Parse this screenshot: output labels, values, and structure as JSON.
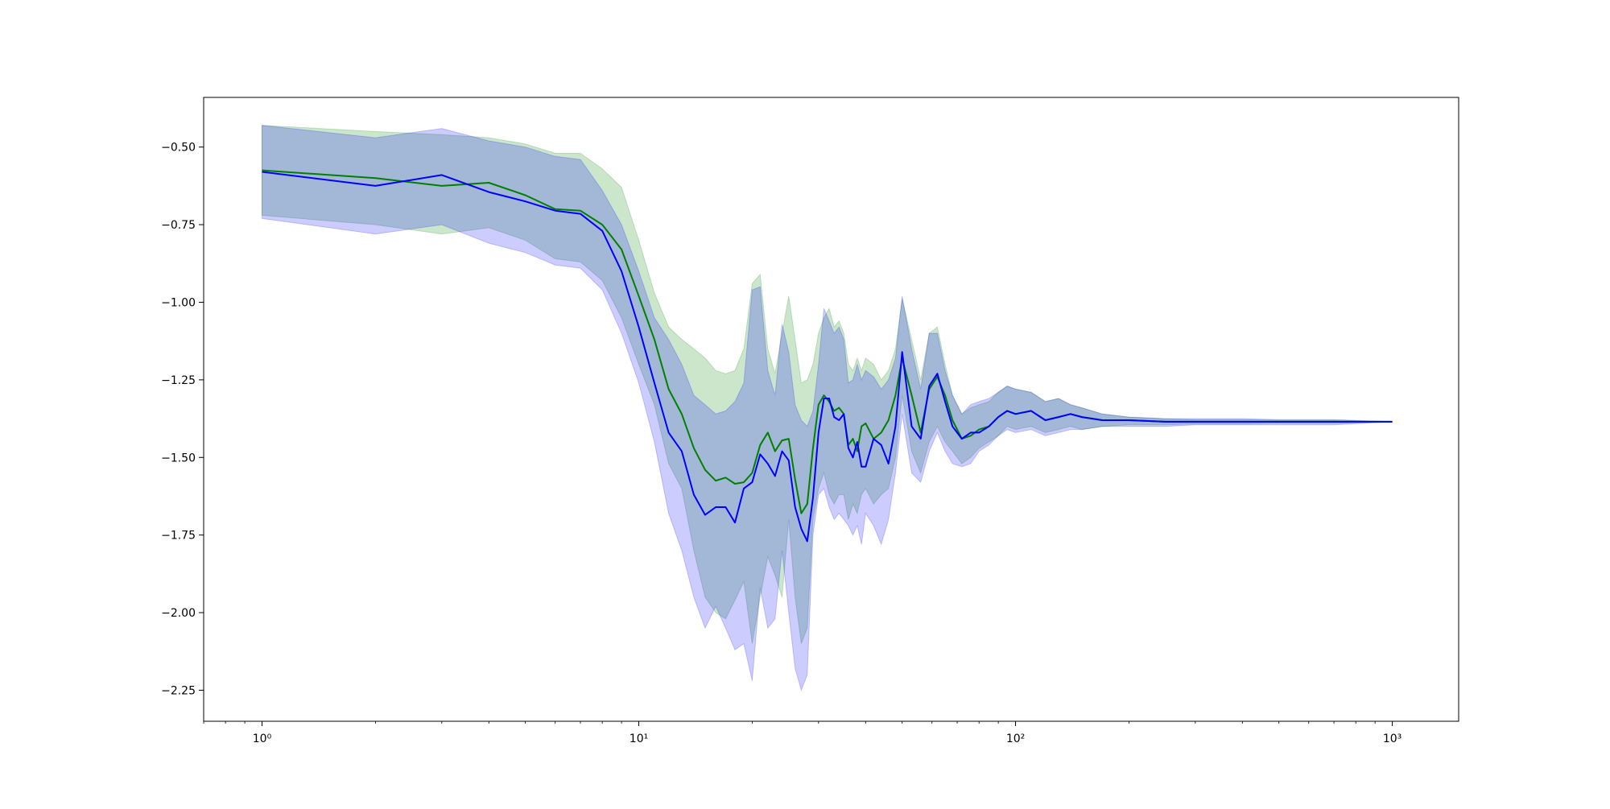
{
  "chart_data": {
    "type": "line",
    "title": "",
    "xlabel": "",
    "ylabel": "",
    "xscale": "log",
    "xlim": [
      0.7,
      1500
    ],
    "ylim": [
      -2.35,
      -0.34
    ],
    "grid": false,
    "legend": "none",
    "x_ticks": [
      {
        "value": 1,
        "label": "10⁰"
      },
      {
        "value": 10,
        "label": "10¹"
      },
      {
        "value": 100,
        "label": "10²"
      },
      {
        "value": 1000,
        "label": "10³"
      }
    ],
    "y_ticks": [
      {
        "value": -0.5,
        "label": "−0.50"
      },
      {
        "value": -0.75,
        "label": "−0.75"
      },
      {
        "value": -1.0,
        "label": "−1.00"
      },
      {
        "value": -1.25,
        "label": "−1.25"
      },
      {
        "value": -1.5,
        "label": "−1.50"
      },
      {
        "value": -1.75,
        "label": "−1.75"
      },
      {
        "value": -2.0,
        "label": "−2.00"
      },
      {
        "value": -2.25,
        "label": "−2.25"
      }
    ],
    "series": [
      {
        "color": "#008000",
        "band_color": "#008000",
        "band_opacity": 0.2,
        "x": [
          1,
          2,
          3,
          4,
          5,
          6,
          7,
          8,
          9,
          10,
          11,
          12,
          13,
          14,
          15,
          16,
          17,
          18,
          19,
          20,
          21,
          22,
          23,
          24,
          25,
          26,
          27,
          28,
          29,
          30,
          31,
          32,
          33,
          34,
          35,
          36,
          37,
          38,
          39,
          40,
          42,
          44,
          46,
          48,
          50,
          53,
          56,
          59,
          62,
          65,
          68,
          72,
          76,
          80,
          85,
          90,
          95,
          100,
          110,
          120,
          130,
          140,
          150,
          170,
          200,
          250,
          300,
          400,
          500,
          700,
          1000
        ],
        "mean": [
          -0.575,
          -0.6,
          -0.625,
          -0.615,
          -0.655,
          -0.7,
          -0.705,
          -0.75,
          -0.83,
          -0.98,
          -1.12,
          -1.28,
          -1.36,
          -1.47,
          -1.54,
          -1.575,
          -1.565,
          -1.585,
          -1.58,
          -1.55,
          -1.46,
          -1.42,
          -1.48,
          -1.445,
          -1.44,
          -1.57,
          -1.68,
          -1.65,
          -1.47,
          -1.33,
          -1.3,
          -1.32,
          -1.35,
          -1.34,
          -1.36,
          -1.46,
          -1.44,
          -1.48,
          -1.4,
          -1.39,
          -1.44,
          -1.42,
          -1.38,
          -1.3,
          -1.18,
          -1.3,
          -1.42,
          -1.28,
          -1.24,
          -1.3,
          -1.38,
          -1.44,
          -1.43,
          -1.41,
          -1.4,
          -1.37,
          -1.35,
          -1.36,
          -1.35,
          -1.38,
          -1.37,
          -1.36,
          -1.37,
          -1.38,
          -1.38,
          -1.385,
          -1.385,
          -1.385,
          -1.385,
          -1.385,
          -1.385
        ],
        "upper": [
          -0.43,
          -0.45,
          -0.46,
          -0.47,
          -0.49,
          -0.52,
          -0.52,
          -0.57,
          -0.63,
          -0.8,
          -0.97,
          -1.08,
          -1.12,
          -1.15,
          -1.18,
          -1.22,
          -1.23,
          -1.22,
          -1.15,
          -0.94,
          -0.91,
          -1.15,
          -1.23,
          -1.1,
          -0.98,
          -1.12,
          -1.26,
          -1.25,
          -1.2,
          -1.1,
          -1.05,
          -1.02,
          -1.08,
          -1.06,
          -1.1,
          -1.2,
          -1.22,
          -1.18,
          -1.22,
          -1.18,
          -1.2,
          -1.25,
          -1.22,
          -1.15,
          -0.99,
          -1.12,
          -1.25,
          -1.1,
          -1.08,
          -1.2,
          -1.3,
          -1.36,
          -1.34,
          -1.33,
          -1.32,
          -1.29,
          -1.27,
          -1.28,
          -1.29,
          -1.32,
          -1.31,
          -1.33,
          -1.34,
          -1.36,
          -1.37,
          -1.375,
          -1.378,
          -1.378,
          -1.38,
          -1.38,
          -1.385
        ],
        "lower": [
          -0.72,
          -0.75,
          -0.78,
          -0.76,
          -0.8,
          -0.86,
          -0.87,
          -0.93,
          -1.05,
          -1.2,
          -1.33,
          -1.52,
          -1.6,
          -1.8,
          -1.95,
          -2.0,
          -2.02,
          -1.96,
          -1.9,
          -2.1,
          -1.95,
          -1.82,
          -1.88,
          -1.95,
          -1.7,
          -1.95,
          -2.1,
          -2.05,
          -1.7,
          -1.6,
          -1.55,
          -1.62,
          -1.65,
          -1.62,
          -1.62,
          -1.7,
          -1.65,
          -1.68,
          -1.62,
          -1.6,
          -1.65,
          -1.62,
          -1.6,
          -1.5,
          -1.3,
          -1.48,
          -1.55,
          -1.45,
          -1.4,
          -1.45,
          -1.48,
          -1.52,
          -1.5,
          -1.47,
          -1.45,
          -1.43,
          -1.4,
          -1.41,
          -1.4,
          -1.42,
          -1.41,
          -1.4,
          -1.41,
          -1.4,
          -1.395,
          -1.395,
          -1.392,
          -1.392,
          -1.39,
          -1.39,
          -1.385
        ]
      },
      {
        "color": "#0000ff",
        "band_color": "#0000ff",
        "band_opacity": 0.2,
        "x": [
          1,
          2,
          3,
          4,
          5,
          6,
          7,
          8,
          9,
          10,
          11,
          12,
          13,
          14,
          15,
          16,
          17,
          18,
          19,
          20,
          21,
          22,
          23,
          24,
          25,
          26,
          27,
          28,
          29,
          30,
          31,
          32,
          33,
          34,
          35,
          36,
          37,
          38,
          39,
          40,
          42,
          44,
          46,
          48,
          50,
          53,
          56,
          59,
          62,
          65,
          68,
          72,
          76,
          80,
          85,
          90,
          95,
          100,
          110,
          120,
          130,
          140,
          150,
          170,
          200,
          250,
          300,
          400,
          500,
          700,
          1000
        ],
        "mean": [
          -0.58,
          -0.625,
          -0.59,
          -0.645,
          -0.675,
          -0.705,
          -0.715,
          -0.77,
          -0.9,
          -1.08,
          -1.26,
          -1.42,
          -1.48,
          -1.62,
          -1.685,
          -1.66,
          -1.66,
          -1.71,
          -1.6,
          -1.58,
          -1.49,
          -1.52,
          -1.56,
          -1.48,
          -1.51,
          -1.66,
          -1.73,
          -1.77,
          -1.63,
          -1.42,
          -1.31,
          -1.31,
          -1.37,
          -1.38,
          -1.36,
          -1.47,
          -1.5,
          -1.45,
          -1.53,
          -1.53,
          -1.44,
          -1.46,
          -1.52,
          -1.4,
          -1.16,
          -1.4,
          -1.44,
          -1.27,
          -1.23,
          -1.32,
          -1.4,
          -1.44,
          -1.42,
          -1.42,
          -1.4,
          -1.37,
          -1.35,
          -1.36,
          -1.35,
          -1.38,
          -1.37,
          -1.36,
          -1.37,
          -1.38,
          -1.38,
          -1.385,
          -1.385,
          -1.385,
          -1.385,
          -1.385,
          -1.385
        ],
        "upper": [
          -0.43,
          -0.47,
          -0.44,
          -0.48,
          -0.5,
          -0.53,
          -0.54,
          -0.64,
          -0.75,
          -0.9,
          -1.05,
          -1.12,
          -1.2,
          -1.3,
          -1.33,
          -1.36,
          -1.35,
          -1.32,
          -1.26,
          -0.96,
          -0.95,
          -1.22,
          -1.3,
          -1.07,
          -1.16,
          -1.33,
          -1.38,
          -1.4,
          -1.35,
          -1.2,
          -1.02,
          -1.06,
          -1.1,
          -1.08,
          -1.12,
          -1.26,
          -1.25,
          -1.2,
          -1.25,
          -1.22,
          -1.24,
          -1.28,
          -1.25,
          -1.18,
          -0.98,
          -1.15,
          -1.28,
          -1.1,
          -1.1,
          -1.22,
          -1.3,
          -1.36,
          -1.33,
          -1.32,
          -1.31,
          -1.29,
          -1.27,
          -1.28,
          -1.29,
          -1.32,
          -1.31,
          -1.33,
          -1.34,
          -1.36,
          -1.37,
          -1.375,
          -1.375,
          -1.375,
          -1.378,
          -1.378,
          -1.385
        ],
        "lower": [
          -0.73,
          -0.78,
          -0.75,
          -0.81,
          -0.84,
          -0.88,
          -0.89,
          -0.96,
          -1.1,
          -1.26,
          -1.45,
          -1.68,
          -1.8,
          -1.95,
          -2.05,
          -1.98,
          -2.05,
          -2.12,
          -2.1,
          -2.22,
          -1.92,
          -2.05,
          -2.02,
          -1.8,
          -2.0,
          -2.18,
          -2.25,
          -2.2,
          -1.75,
          -1.62,
          -1.6,
          -1.66,
          -1.7,
          -1.68,
          -1.7,
          -1.72,
          -1.75,
          -1.72,
          -1.78,
          -1.68,
          -1.72,
          -1.78,
          -1.7,
          -1.55,
          -1.36,
          -1.55,
          -1.58,
          -1.48,
          -1.42,
          -1.48,
          -1.52,
          -1.53,
          -1.52,
          -1.48,
          -1.46,
          -1.43,
          -1.41,
          -1.42,
          -1.41,
          -1.43,
          -1.42,
          -1.41,
          -1.41,
          -1.4,
          -1.4,
          -1.4,
          -1.395,
          -1.395,
          -1.395,
          -1.395,
          -1.385
        ]
      }
    ]
  }
}
